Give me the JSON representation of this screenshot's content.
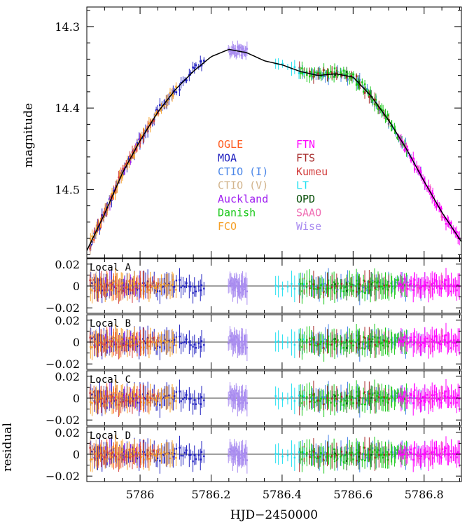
{
  "chart_data": {
    "type": "scatter",
    "x_label": "HJD−2450000",
    "xlim": [
      5785.85,
      5786.905
    ],
    "x_ticks": [
      "5786",
      "5786.2",
      "5786.4",
      "5786.6",
      "5786.8"
    ],
    "x_tick_values": [
      5786,
      5786.2,
      5786.4,
      5786.6,
      5786.8
    ],
    "main_panel": {
      "y_label": "magnitude",
      "ylim": [
        14.276,
        14.584
      ],
      "y_inverted": true,
      "y_ticks": [
        "14.3",
        "14.4",
        "14.5"
      ],
      "y_tick_values": [
        14.3,
        14.4,
        14.5
      ],
      "model_curve": {
        "x": [
          5785.85,
          5785.9,
          5785.95,
          5786.0,
          5786.05,
          5786.1,
          5786.15,
          5786.2,
          5786.25,
          5786.3,
          5786.35,
          5786.4,
          5786.45,
          5786.5,
          5786.55,
          5786.6,
          5786.65,
          5786.7,
          5786.75,
          5786.8,
          5786.85,
          5786.905
        ],
        "y": [
          14.575,
          14.53,
          14.48,
          14.44,
          14.405,
          14.377,
          14.355,
          14.337,
          14.328,
          14.332,
          14.342,
          14.347,
          14.355,
          14.36,
          14.358,
          14.362,
          14.385,
          14.415,
          14.45,
          14.49,
          14.528,
          14.564
        ]
      }
    },
    "residual_panels": [
      {
        "label": "Local A"
      },
      {
        "label": "Local B"
      },
      {
        "label": "Local C"
      },
      {
        "label": "Local D"
      }
    ],
    "residual_y_label": "residual",
    "residual_ylim": [
      -0.025,
      0.025
    ],
    "residual_y_ticks": [
      "0.02",
      "0",
      "−0.02"
    ],
    "residual_y_tick_values": [
      0.02,
      0,
      -0.02
    ],
    "series": [
      {
        "name": "OGLE",
        "color": "#ff5a1e",
        "x_range": [
          5785.86,
          5786.02
        ],
        "count": 18
      },
      {
        "name": "MOA",
        "color": "#1f1fbf",
        "x_range": [
          5785.86,
          5786.18
        ],
        "count": 60
      },
      {
        "name": "CTIO (I)",
        "color": "#4a86e8",
        "x_range": [
          5786.45,
          5786.8
        ],
        "count": 40
      },
      {
        "name": "CTIO (V)",
        "color": "#d2b48c",
        "x_range": [
          5785.86,
          5785.95
        ],
        "count": 6
      },
      {
        "name": "Auckland",
        "color": "#a020f0",
        "x_range": [
          5785.9,
          5786.0
        ],
        "count": 8
      },
      {
        "name": "Danish",
        "color": "#19c819",
        "x_range": [
          5786.45,
          5786.75
        ],
        "count": 70
      },
      {
        "name": "FCO",
        "color": "#f5a028",
        "x_range": [
          5785.86,
          5786.1
        ],
        "count": 45
      },
      {
        "name": "FTN",
        "color": "#ff00ff",
        "x_range": [
          5786.73,
          5786.9
        ],
        "count": 55
      },
      {
        "name": "FTS",
        "color": "#a52a2a",
        "x_range": [
          5786.45,
          5786.7
        ],
        "count": 20
      },
      {
        "name": "Kumeu",
        "color": "#d23c3c",
        "x_range": [
          5785.86,
          5786.05
        ],
        "count": 20
      },
      {
        "name": "LT",
        "color": "#22e0f0",
        "x_range": [
          5786.38,
          5786.46
        ],
        "count": 8
      },
      {
        "name": "OPD",
        "color": "#0a500a",
        "x_range": [
          5786.55,
          5786.65
        ],
        "count": 4
      },
      {
        "name": "SAAO",
        "color": "#f06eb4",
        "x_range": [
          5786.75,
          5786.85
        ],
        "count": 4
      },
      {
        "name": "Wise",
        "color": "#a98cf0",
        "x_range": [
          5786.25,
          5786.3
        ],
        "count": 35
      }
    ]
  }
}
